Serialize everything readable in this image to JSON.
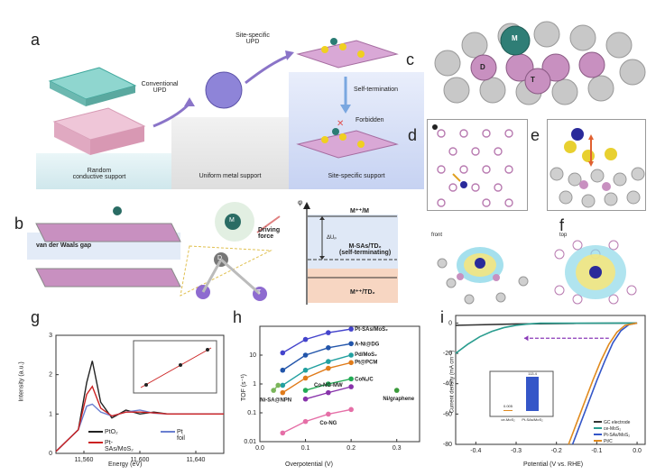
{
  "panels": {
    "a": {
      "label": "a",
      "stages": [
        "Random\nconductive support",
        "Uniform metal support",
        "Site-specific support"
      ],
      "steps": [
        "Conventional\nUPD",
        "Site-specific\nUPD",
        "Self-termination",
        "Forbidden"
      ]
    },
    "b": {
      "label": "b",
      "gap_label": "van der Waals gap",
      "atoms": [
        "M",
        "D",
        "T"
      ],
      "force_label": "Driving\nforce",
      "energy_axis": "φ",
      "levels": [
        "M⁺⁺/M",
        "M-SAs/TD₂\n(self-terminating)",
        "M⁺⁺/TD₂"
      ],
      "delta": "ΔUₚ"
    },
    "c": {
      "label": "c",
      "atoms": [
        "M",
        "D",
        "T"
      ]
    },
    "d": {
      "label": "d"
    },
    "e": {
      "label": "e"
    },
    "f": {
      "label": "f",
      "views": [
        "front",
        "top"
      ]
    },
    "g": {
      "label": "g",
      "xlabel": "Energy (eV)",
      "ylabel": "Intensity (a.u.)",
      "xticks": [
        "11,560",
        "11,600",
        "11,640"
      ],
      "yticks": [
        "0",
        "1",
        "2",
        "3"
      ],
      "legend": [
        "PtO₂",
        "Pt foil",
        "Pt-SAs/MoS₂"
      ],
      "colors": {
        "pto2": "#222222",
        "ptfoil": "#6a7fd0",
        "ptsas": "#cc2222"
      }
    },
    "h": {
      "label": "h",
      "xlabel": "Overpotential (V)",
      "ylabel": "TOF (s⁻¹)",
      "xticks": [
        "0.0",
        "0.1",
        "0.2",
        "0.3"
      ],
      "yticks": [
        "10",
        "1",
        "0.1",
        "0.01"
      ],
      "series_labels": [
        "Pt-SAs/MoS₂",
        "A-Ni@DG",
        "Pd/MoS₂",
        "Pt@PCM",
        "CoNₓ/C",
        "Co-NG-MW",
        "Ni-SA@NPN",
        "Co-NG",
        "Ni/graphene"
      ]
    },
    "i": {
      "label": "i",
      "xlabel": "Potential (V vs. RHE)",
      "ylabel": "Current density (mA cm⁻²)",
      "xticks": [
        "-0.4",
        "-0.3",
        "-0.2",
        "-0.1",
        "0.0"
      ],
      "yticks": [
        "0",
        "-20",
        "-40",
        "-60",
        "-80"
      ],
      "legend": [
        "GC electrode",
        "ce-MoS₂",
        "Pt-SAs/MoS₂",
        "Pt/C"
      ],
      "colors": {
        "gc": "#333333",
        "ce": "#2a9d8f",
        "ptsas": "#3456c8",
        "ptc": "#e08a1e"
      },
      "inset": {
        "bars": [
          "ce-MoS₂",
          "Pt-SAs/MoS₂"
        ],
        "values": [
          "0.005",
          "113.4"
        ]
      }
    }
  },
  "chart_data": [
    {
      "type": "line",
      "title": "",
      "xlabel": "Energy (eV)",
      "ylabel": "Intensity (a.u.)",
      "xlim": [
        11540,
        11660
      ],
      "ylim": [
        0,
        3
      ],
      "series": [
        {
          "name": "PtO₂",
          "x": [
            11540,
            11556,
            11562,
            11566,
            11572,
            11580,
            11590,
            11600,
            11610,
            11620,
            11640,
            11660
          ],
          "y": [
            0.05,
            0.6,
            1.8,
            2.35,
            1.3,
            0.9,
            1.1,
            1.0,
            1.05,
            1.0,
            1.0,
            1.0
          ]
        },
        {
          "name": "Pt foil",
          "x": [
            11540,
            11556,
            11562,
            11566,
            11572,
            11580,
            11590,
            11600,
            11610,
            11620,
            11640,
            11660
          ],
          "y": [
            0.05,
            0.6,
            1.2,
            1.25,
            1.05,
            0.95,
            1.05,
            1.1,
            1.02,
            1.0,
            1.0,
            1.0
          ]
        },
        {
          "name": "Pt-SAs/MoS₂",
          "x": [
            11540,
            11556,
            11562,
            11566,
            11572,
            11580,
            11590,
            11600,
            11610,
            11620,
            11640,
            11660
          ],
          "y": [
            0.05,
            0.6,
            1.5,
            1.7,
            1.15,
            0.95,
            1.05,
            1.05,
            1.03,
            1.0,
            1.0,
            1.0
          ]
        }
      ]
    },
    {
      "type": "scatter",
      "title": "",
      "xlabel": "Overpotential (V)",
      "ylabel": "TOF (s⁻¹)",
      "xlim": [
        0.0,
        0.35
      ],
      "ylim": [
        0.01,
        100
      ],
      "yscale": "log",
      "series": [
        {
          "name": "Pt-SAs/MoS₂",
          "color": "#4444cc",
          "x": [
            0.05,
            0.1,
            0.15,
            0.2
          ],
          "y": [
            12,
            35,
            60,
            80
          ]
        },
        {
          "name": "A-Ni@DG",
          "color": "#2255aa",
          "x": [
            0.05,
            0.1,
            0.15,
            0.2
          ],
          "y": [
            3,
            10,
            18,
            25
          ]
        },
        {
          "name": "Pd/MoS₂",
          "color": "#22a0a0",
          "x": [
            0.05,
            0.1,
            0.15,
            0.2
          ],
          "y": [
            0.9,
            3,
            6,
            10
          ]
        },
        {
          "name": "Pt@PCM",
          "color": "#e07b1a",
          "x": [
            0.05,
            0.1,
            0.15,
            0.2
          ],
          "y": [
            0.5,
            1.6,
            3.5,
            5.5
          ]
        },
        {
          "name": "CoNₓ/C",
          "color": "#22aa55",
          "x": [
            0.1,
            0.15,
            0.2
          ],
          "y": [
            0.6,
            1.0,
            1.5
          ]
        },
        {
          "name": "Co-NG-MW",
          "color": "#8833aa",
          "x": [
            0.1,
            0.15,
            0.2
          ],
          "y": [
            0.3,
            0.5,
            0.8
          ]
        },
        {
          "name": "Ni-SA@NPN",
          "color": "#7ab55a",
          "x": [
            0.03,
            0.04
          ],
          "y": [
            0.6,
            0.9
          ]
        },
        {
          "name": "Co-NG",
          "color": "#e56fa7",
          "x": [
            0.05,
            0.1,
            0.15,
            0.2
          ],
          "y": [
            0.02,
            0.05,
            0.09,
            0.13
          ]
        },
        {
          "name": "Ni/graphene",
          "color": "#3a9a3a",
          "x": [
            0.3
          ],
          "y": [
            0.6
          ]
        }
      ]
    },
    {
      "type": "line",
      "title": "",
      "xlabel": "Potential (V vs. RHE)",
      "ylabel": "Current density (mA cm⁻²)",
      "xlim": [
        -0.45,
        0.02
      ],
      "ylim": [
        -80,
        5
      ],
      "series": [
        {
          "name": "GC electrode",
          "x": [
            -0.45,
            -0.3,
            -0.15,
            0.0
          ],
          "y": [
            -1.5,
            -0.6,
            -0.2,
            0.0
          ]
        },
        {
          "name": "ce-MoS₂",
          "x": [
            -0.45,
            -0.42,
            -0.39,
            -0.36,
            -0.33,
            -0.3,
            -0.27,
            -0.24,
            0.0
          ],
          "y": [
            -20,
            -14,
            -9,
            -5.5,
            -3,
            -1.5,
            -0.6,
            -0.1,
            0.0
          ]
        },
        {
          "name": "Pt-SAs/MoS₂",
          "x": [
            -0.16,
            -0.14,
            -0.12,
            -0.1,
            -0.08,
            -0.06,
            -0.04,
            -0.02,
            0.0
          ],
          "y": [
            -80,
            -66,
            -52,
            -38,
            -25,
            -13,
            -5,
            -1,
            0.0
          ]
        },
        {
          "name": "Pt/C",
          "x": [
            -0.17,
            -0.15,
            -0.13,
            -0.11,
            -0.09,
            -0.07,
            -0.05,
            -0.03,
            0.0
          ],
          "y": [
            -80,
            -66,
            -52,
            -38,
            -25,
            -14,
            -6,
            -1.5,
            0.0
          ]
        }
      ]
    }
  ]
}
